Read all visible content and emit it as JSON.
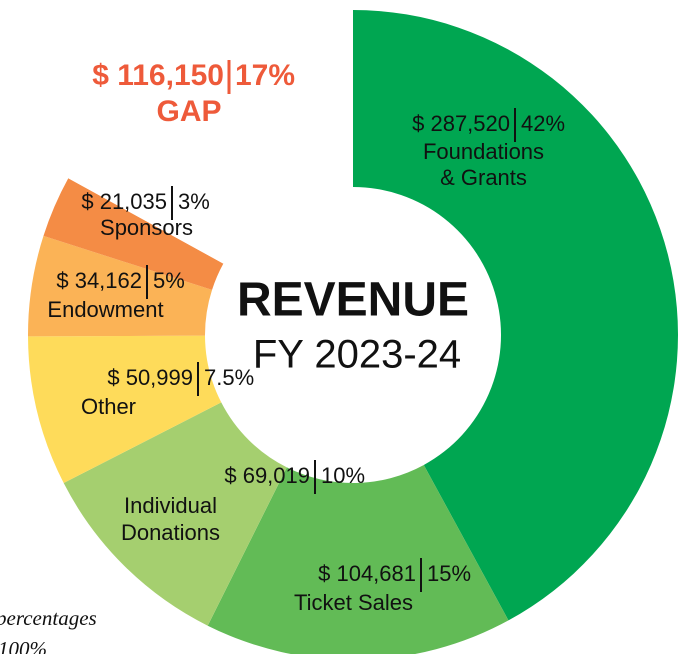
{
  "chart_data": {
    "type": "donut",
    "title": "REVENUE",
    "subtitle": "FY 2023-24",
    "categories": [
      "Foundations & Grants",
      "Ticket Sales",
      "Individual Donations",
      "Other",
      "Endowment",
      "Sponsors",
      "GAP"
    ],
    "values": [
      287520,
      104681,
      69019,
      50999,
      34162,
      21035,
      116150
    ],
    "value_labels": [
      "$ 287,520",
      "$ 104,681",
      "$ 69,019",
      "$ 50,999",
      "$ 34,162",
      "$ 21,035",
      "$ 116,150"
    ],
    "percentages": [
      42,
      15,
      10,
      7.5,
      5,
      3,
      17
    ],
    "percent_labels": [
      "42%",
      "15%",
      "10%",
      "7.5%",
      "5%",
      "3%",
      "17%"
    ],
    "colors": [
      "#00a651",
      "#62bb56",
      "#a5cf6f",
      "#fedb5a",
      "#fbb356",
      "#f48c45",
      "#ffffff"
    ],
    "footnote": [
      "percentages",
      "100%"
    ]
  }
}
